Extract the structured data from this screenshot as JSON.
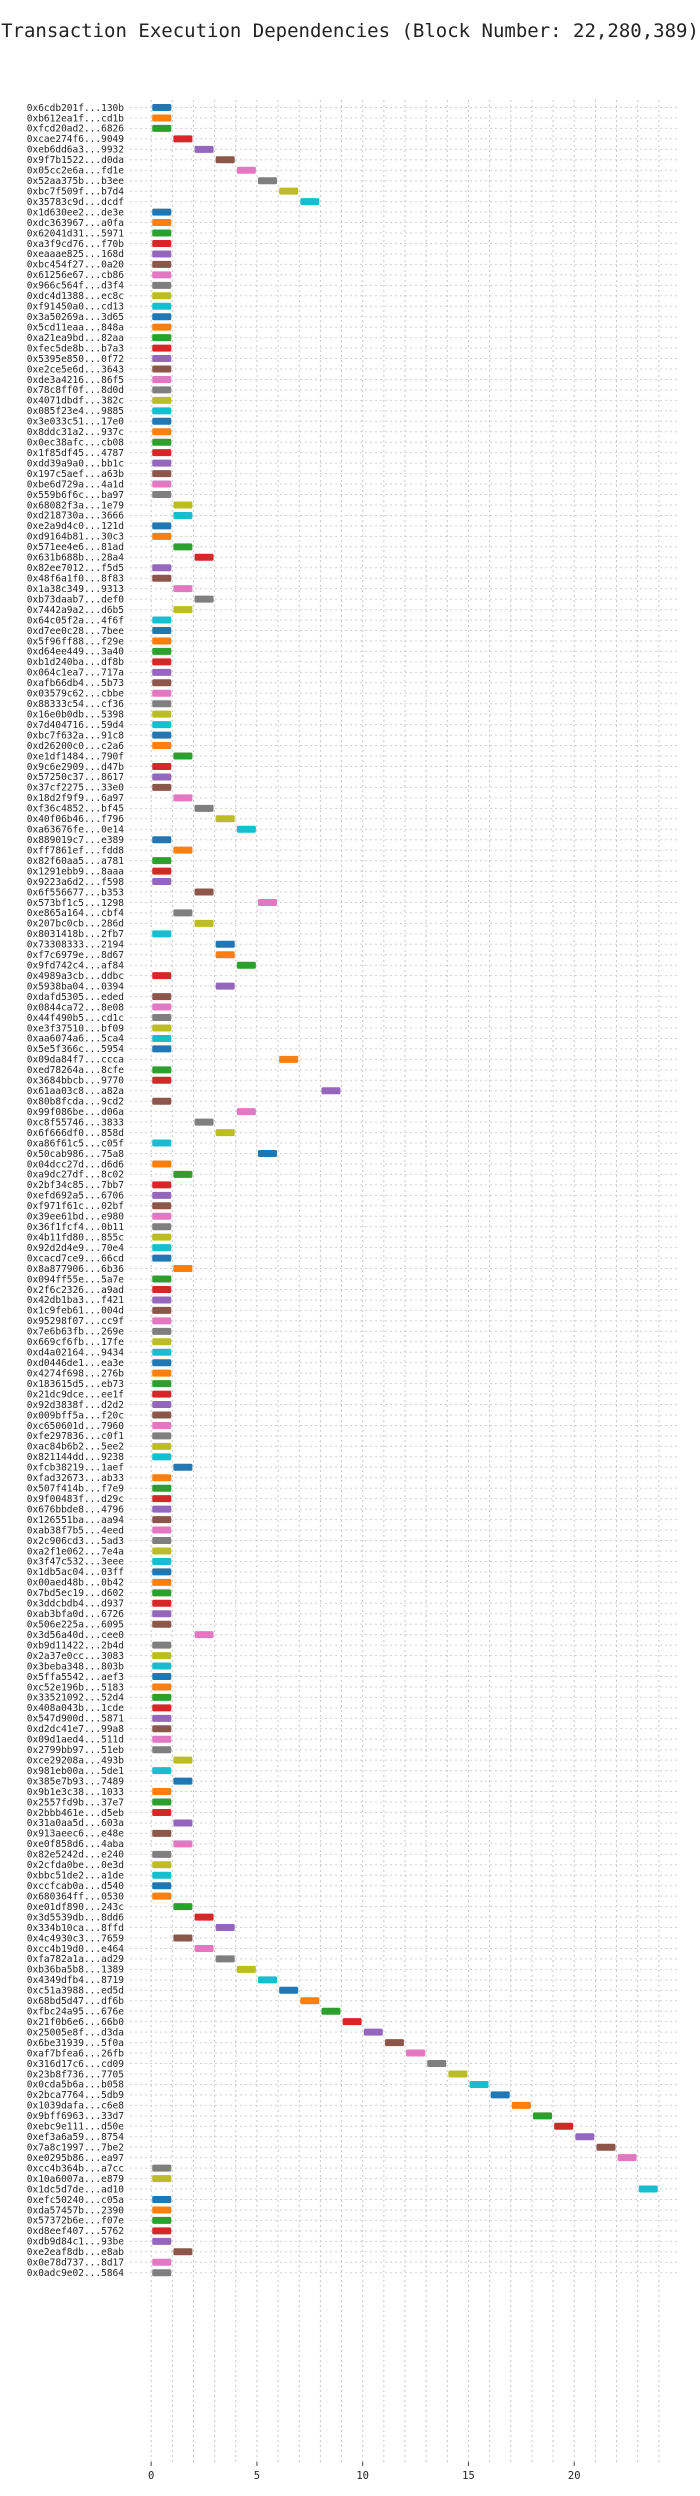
{
  "chart_data": {
    "type": "bar",
    "orientation": "horizontal-gantt",
    "title": "Transaction Execution Dependencies (Block Number: 22,280,389)",
    "xlabel": "",
    "ylabel": "",
    "xlim": [
      -1,
      25
    ],
    "x_ticks": [
      0,
      5,
      10,
      15,
      20
    ],
    "grid": true,
    "palette": [
      "#1f77b4",
      "#ff7f0e",
      "#2ca02c",
      "#d62728",
      "#9467bd",
      "#8c564b",
      "#e377c2",
      "#7f7f7f",
      "#bcbd22",
      "#17becf"
    ],
    "transactions": [
      {
        "label": "0x6cdb201f...130b",
        "start": 0
      },
      {
        "label": "0xb612ea1f...cd1b",
        "start": 0
      },
      {
        "label": "0xfcd20ad2...6826",
        "start": 0
      },
      {
        "label": "0xcae274f6...9049",
        "start": 1
      },
      {
        "label": "0xeb6dd6a3...9932",
        "start": 2
      },
      {
        "label": "0x9f7b1522...d0da",
        "start": 3
      },
      {
        "label": "0x05cc2e6a...fd1e",
        "start": 4
      },
      {
        "label": "0x52aa375b...b3ee",
        "start": 5
      },
      {
        "label": "0xbc7f509f...b7d4",
        "start": 6
      },
      {
        "label": "0x35783c9d...dcdf",
        "start": 7
      },
      {
        "label": "0x1d630ee2...de3e",
        "start": 0
      },
      {
        "label": "0xdc363967...a0fa",
        "start": 0
      },
      {
        "label": "0x62041d31...5971",
        "start": 0
      },
      {
        "label": "0xa3f9cd76...f70b",
        "start": 0
      },
      {
        "label": "0xeaaae825...168d",
        "start": 0
      },
      {
        "label": "0xbc454f27...0a20",
        "start": 0
      },
      {
        "label": "0x61256e67...cb86",
        "start": 0
      },
      {
        "label": "0x966c564f...d3f4",
        "start": 0
      },
      {
        "label": "0xdc4d1388...ec8c",
        "start": 0
      },
      {
        "label": "0xf91450a0...cd13",
        "start": 0
      },
      {
        "label": "0x3a50269a...3d65",
        "start": 0
      },
      {
        "label": "0x5cd11eaa...848a",
        "start": 0
      },
      {
        "label": "0xa21ea9bd...82aa",
        "start": 0
      },
      {
        "label": "0xfec5de8b...b7a3",
        "start": 0
      },
      {
        "label": "0x5395e850...0f72",
        "start": 0
      },
      {
        "label": "0xe2ce5e6d...3643",
        "start": 0
      },
      {
        "label": "0xde3a4216...86f5",
        "start": 0
      },
      {
        "label": "0x78c8ff0f...8d0d",
        "start": 0
      },
      {
        "label": "0x4071dbdf...382c",
        "start": 0
      },
      {
        "label": "0x085f23e4...9885",
        "start": 0
      },
      {
        "label": "0x3e033c51...17e0",
        "start": 0
      },
      {
        "label": "0x8ddc31a2...937c",
        "start": 0
      },
      {
        "label": "0x0ec38afc...cb08",
        "start": 0
      },
      {
        "label": "0x1f85df45...4787",
        "start": 0
      },
      {
        "label": "0xdd39a9a0...bb1c",
        "start": 0
      },
      {
        "label": "0x197c5aef...a63b",
        "start": 0
      },
      {
        "label": "0xbe6d729a...4a1d",
        "start": 0
      },
      {
        "label": "0x559b6f6c...ba97",
        "start": 0
      },
      {
        "label": "0x68082f3a...1e79",
        "start": 1
      },
      {
        "label": "0xd218730a...3666",
        "start": 1
      },
      {
        "label": "0xe2a9d4c0...121d",
        "start": 0
      },
      {
        "label": "0xd9164b81...30c3",
        "start": 0
      },
      {
        "label": "0x571ee4e6...81ad",
        "start": 1
      },
      {
        "label": "0x631b688b...28a4",
        "start": 2
      },
      {
        "label": "0x82ee7012...f5d5",
        "start": 0
      },
      {
        "label": "0x48f6a1f0...8f83",
        "start": 0
      },
      {
        "label": "0x1a38c349...9313",
        "start": 1
      },
      {
        "label": "0xb73daab7...def0",
        "start": 2
      },
      {
        "label": "0x7442a9a2...d6b5",
        "start": 1
      },
      {
        "label": "0x64c05f2a...4f6f",
        "start": 0
      },
      {
        "label": "0xd7ee0c28...7bee",
        "start": 0
      },
      {
        "label": "0x5f96ff88...f29e",
        "start": 0
      },
      {
        "label": "0xd64ee449...3a40",
        "start": 0
      },
      {
        "label": "0xb1d240ba...df8b",
        "start": 0
      },
      {
        "label": "0x064c1ea7...717a",
        "start": 0
      },
      {
        "label": "0xafb66db4...5b73",
        "start": 0
      },
      {
        "label": "0x03579c62...cbbe",
        "start": 0
      },
      {
        "label": "0x88333c54...cf36",
        "start": 0
      },
      {
        "label": "0x16e0b0db...5398",
        "start": 0
      },
      {
        "label": "0x7d404716...59d4",
        "start": 0
      },
      {
        "label": "0xbc7f632a...91c8",
        "start": 0
      },
      {
        "label": "0xd26200c0...c2a6",
        "start": 0
      },
      {
        "label": "0xe1df1484...790f",
        "start": 1
      },
      {
        "label": "0x9c6e2909...d47b",
        "start": 0
      },
      {
        "label": "0x57250c37...8617",
        "start": 0
      },
      {
        "label": "0x37cf2275...33e0",
        "start": 0
      },
      {
        "label": "0x18d2f9f9...6a97",
        "start": 1
      },
      {
        "label": "0xf36c4852...bf45",
        "start": 2
      },
      {
        "label": "0x40f06b46...f796",
        "start": 3
      },
      {
        "label": "0xa63676fe...0e14",
        "start": 4
      },
      {
        "label": "0x889019c7...e389",
        "start": 0
      },
      {
        "label": "0xff7861ef...fdd8",
        "start": 1
      },
      {
        "label": "0x82f60aa5...a781",
        "start": 0
      },
      {
        "label": "0x1291ebb9...8aaa",
        "start": 0
      },
      {
        "label": "0x9223a6d2...f598",
        "start": 0
      },
      {
        "label": "0x6f556677...b353",
        "start": 2
      },
      {
        "label": "0x573bf1c5...1298",
        "start": 5
      },
      {
        "label": "0xe865a164...cbf4",
        "start": 1
      },
      {
        "label": "0x207bc0cb...286d",
        "start": 2
      },
      {
        "label": "0x8031418b...2fb7",
        "start": 0
      },
      {
        "label": "0x73308333...2194",
        "start": 3
      },
      {
        "label": "0xf7c6979e...8d67",
        "start": 3
      },
      {
        "label": "0x9fd742c4...af84",
        "start": 4
      },
      {
        "label": "0x4989a3cb...ddbc",
        "start": 0
      },
      {
        "label": "0x5938ba04...0394",
        "start": 3
      },
      {
        "label": "0xdafd5305...eded",
        "start": 0
      },
      {
        "label": "0x0844ca72...8e08",
        "start": 0
      },
      {
        "label": "0x44f490b5...cd1c",
        "start": 0
      },
      {
        "label": "0xe3f37510...bf09",
        "start": 0
      },
      {
        "label": "0xaa6074a6...5ca4",
        "start": 0
      },
      {
        "label": "0x5e5f366c...5954",
        "start": 0
      },
      {
        "label": "0x09da84f7...ccca",
        "start": 6
      },
      {
        "label": "0xed78264a...8cfe",
        "start": 0
      },
      {
        "label": "0x3684bbcb...9770",
        "start": 0
      },
      {
        "label": "0x61aa03c8...a82a",
        "start": 8
      },
      {
        "label": "0x80b8fcda...9cd2",
        "start": 0
      },
      {
        "label": "0x99f086be...d06a",
        "start": 4
      },
      {
        "label": "0xc8f55746...3833",
        "start": 2
      },
      {
        "label": "0x6f666df0...858d",
        "start": 3
      },
      {
        "label": "0xa86f61c5...c05f",
        "start": 0
      },
      {
        "label": "0x50cab986...75a8",
        "start": 5
      },
      {
        "label": "0x04dcc27d...d6d6",
        "start": 0
      },
      {
        "label": "0xa9dc27df...8c02",
        "start": 1
      },
      {
        "label": "0x2bf34c85...7bb7",
        "start": 0
      },
      {
        "label": "0xefd692a5...6706",
        "start": 0
      },
      {
        "label": "0xf971f61c...02bf",
        "start": 0
      },
      {
        "label": "0x39ee61bd...e980",
        "start": 0
      },
      {
        "label": "0x36f1fcf4...0b11",
        "start": 0
      },
      {
        "label": "0x4b11fd80...855c",
        "start": 0
      },
      {
        "label": "0x92d2d4e9...70e4",
        "start": 0
      },
      {
        "label": "0xcacd7ce9...66cd",
        "start": 0
      },
      {
        "label": "0x8a877906...6b36",
        "start": 1
      },
      {
        "label": "0x094ff55e...5a7e",
        "start": 0
      },
      {
        "label": "0x2f6c2326...a9ad",
        "start": 0
      },
      {
        "label": "0x42db1ba3...f421",
        "start": 0
      },
      {
        "label": "0x1c9feb61...004d",
        "start": 0
      },
      {
        "label": "0x95298f07...cc9f",
        "start": 0
      },
      {
        "label": "0x7e6b63fb...269e",
        "start": 0
      },
      {
        "label": "0x669cf6fb...17fe",
        "start": 0
      },
      {
        "label": "0xd4a02164...9434",
        "start": 0
      },
      {
        "label": "0xd0446de1...ea3e",
        "start": 0
      },
      {
        "label": "0x4274f698...276b",
        "start": 0
      },
      {
        "label": "0x183615d5...eb73",
        "start": 0
      },
      {
        "label": "0x21dc9dce...ee1f",
        "start": 0
      },
      {
        "label": "0x92d3838f...d2d2",
        "start": 0
      },
      {
        "label": "0x009bff5a...f20c",
        "start": 0
      },
      {
        "label": "0xc650601d...7960",
        "start": 0
      },
      {
        "label": "0xfe297836...c0f1",
        "start": 0
      },
      {
        "label": "0xac84b6b2...5ee2",
        "start": 0
      },
      {
        "label": "0x821144dd...9238",
        "start": 0
      },
      {
        "label": "0xfcb38219...1aef",
        "start": 1
      },
      {
        "label": "0xfad32673...ab33",
        "start": 0
      },
      {
        "label": "0x507f414b...f7e9",
        "start": 0
      },
      {
        "label": "0x9f00483f...d29c",
        "start": 0
      },
      {
        "label": "0x676bbde8...4796",
        "start": 0
      },
      {
        "label": "0x126551ba...aa94",
        "start": 0
      },
      {
        "label": "0xab38f7b5...4eed",
        "start": 0
      },
      {
        "label": "0x2c906cd3...5ad3",
        "start": 0
      },
      {
        "label": "0xa2f1e062...7e4a",
        "start": 0
      },
      {
        "label": "0x3f47c532...3eee",
        "start": 0
      },
      {
        "label": "0x1db5ac04...03ff",
        "start": 0
      },
      {
        "label": "0x00aed48b...0b42",
        "start": 0
      },
      {
        "label": "0x7bd5ec19...d602",
        "start": 0
      },
      {
        "label": "0x3ddcbdb4...d937",
        "start": 0
      },
      {
        "label": "0xab3bfa0d...6726",
        "start": 0
      },
      {
        "label": "0x506e225a...6095",
        "start": 0
      },
      {
        "label": "0x3d56a40d...cee0",
        "start": 2
      },
      {
        "label": "0xb9d11422...2b4d",
        "start": 0
      },
      {
        "label": "0x2a37e0cc...3083",
        "start": 0
      },
      {
        "label": "0x3beba348...803b",
        "start": 0
      },
      {
        "label": "0x5ffa5542...aef3",
        "start": 0
      },
      {
        "label": "0xc52e196b...5183",
        "start": 0
      },
      {
        "label": "0x33521092...52d4",
        "start": 0
      },
      {
        "label": "0x408a043b...1cde",
        "start": 0
      },
      {
        "label": "0x547d900d...5871",
        "start": 0
      },
      {
        "label": "0xd2dc41e7...99a8",
        "start": 0
      },
      {
        "label": "0x09d1aed4...511d",
        "start": 0
      },
      {
        "label": "0x2799bb97...51eb",
        "start": 0
      },
      {
        "label": "0xce29208a...493b",
        "start": 1
      },
      {
        "label": "0x981eb00a...5de1",
        "start": 0
      },
      {
        "label": "0x385e7b93...7489",
        "start": 1
      },
      {
        "label": "0x9b1e3c38...1033",
        "start": 0
      },
      {
        "label": "0x2557fd9b...37e7",
        "start": 0
      },
      {
        "label": "0x2bbb461e...d5eb",
        "start": 0
      },
      {
        "label": "0x31a0aa5d...603a",
        "start": 1
      },
      {
        "label": "0x913aeec6...e48e",
        "start": 0
      },
      {
        "label": "0xe0f858d6...4aba",
        "start": 1
      },
      {
        "label": "0x82e5242d...e240",
        "start": 0
      },
      {
        "label": "0x2cfda0be...0e3d",
        "start": 0
      },
      {
        "label": "0xbbc51de2...a1de",
        "start": 0
      },
      {
        "label": "0xccfcab0a...d540",
        "start": 0
      },
      {
        "label": "0x680364ff...0530",
        "start": 0
      },
      {
        "label": "0xe01df890...243c",
        "start": 1
      },
      {
        "label": "0x3d5539db...8dd6",
        "start": 2
      },
      {
        "label": "0x334b10ca...8ffd",
        "start": 3
      },
      {
        "label": "0x4c4930c3...7659",
        "start": 1
      },
      {
        "label": "0xcc4b19d0...e464",
        "start": 2
      },
      {
        "label": "0xfa782a1a...ad29",
        "start": 3
      },
      {
        "label": "0xb36ba5b8...1389",
        "start": 4
      },
      {
        "label": "0x4349dfb4...8719",
        "start": 5
      },
      {
        "label": "0xc51a3988...ed5d",
        "start": 6
      },
      {
        "label": "0x68bd5d47...df6b",
        "start": 7
      },
      {
        "label": "0xfbc24a95...676e",
        "start": 8
      },
      {
        "label": "0x21f0b6e6...66b0",
        "start": 9
      },
      {
        "label": "0x25005e8f...d3da",
        "start": 10
      },
      {
        "label": "0x6be31939...5f0a",
        "start": 11
      },
      {
        "label": "0xaf7bfea6...26fb",
        "start": 12
      },
      {
        "label": "0x316d17c6...cd09",
        "start": 13
      },
      {
        "label": "0x23b8f736...7705",
        "start": 14
      },
      {
        "label": "0x0cda5b6a...b058",
        "start": 15
      },
      {
        "label": "0x2bca7764...5db9",
        "start": 16
      },
      {
        "label": "0x1039dafa...c6e8",
        "start": 17
      },
      {
        "label": "0x9bff6963...33d7",
        "start": 18
      },
      {
        "label": "0xebc9e111...d50e",
        "start": 19
      },
      {
        "label": "0xef3a6a59...8754",
        "start": 20
      },
      {
        "label": "0x7a8c1997...7be2",
        "start": 21
      },
      {
        "label": "0xe0295b86...ea97",
        "start": 22
      },
      {
        "label": "0xcc4b364b...a7cc",
        "start": 0
      },
      {
        "label": "0x10a6007a...e879",
        "start": 0
      },
      {
        "label": "0x1dc5d7de...ad10",
        "start": 23
      },
      {
        "label": "0xefc50240...c05a",
        "start": 0
      },
      {
        "label": "0xda57457b...2390",
        "start": 0
      },
      {
        "label": "0x57372b6e...f07e",
        "start": 0
      },
      {
        "label": "0xd8eef407...5762",
        "start": 0
      },
      {
        "label": "0xdb9d84c1...93be",
        "start": 0
      },
      {
        "label": "0xe2eaf8db...e8ab",
        "start": 1
      },
      {
        "label": "0x0e78d737...8d17",
        "start": 0
      },
      {
        "label": "0x0adc9e02...5864",
        "start": 0
      }
    ]
  }
}
